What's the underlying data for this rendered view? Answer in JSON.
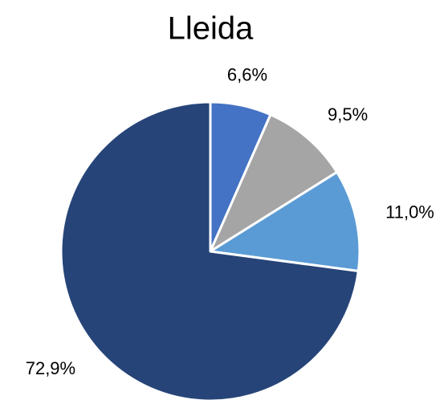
{
  "chart_data": {
    "type": "pie",
    "title": "Lleida",
    "values": [
      6.6,
      9.5,
      11.0,
      72.9
    ],
    "value_labels": [
      "6,6%",
      "9,5%",
      "11,0%",
      "72,9%"
    ],
    "colors": [
      "#4472c4",
      "#a5a5a5",
      "#5b9bd5",
      "#264478"
    ]
  }
}
